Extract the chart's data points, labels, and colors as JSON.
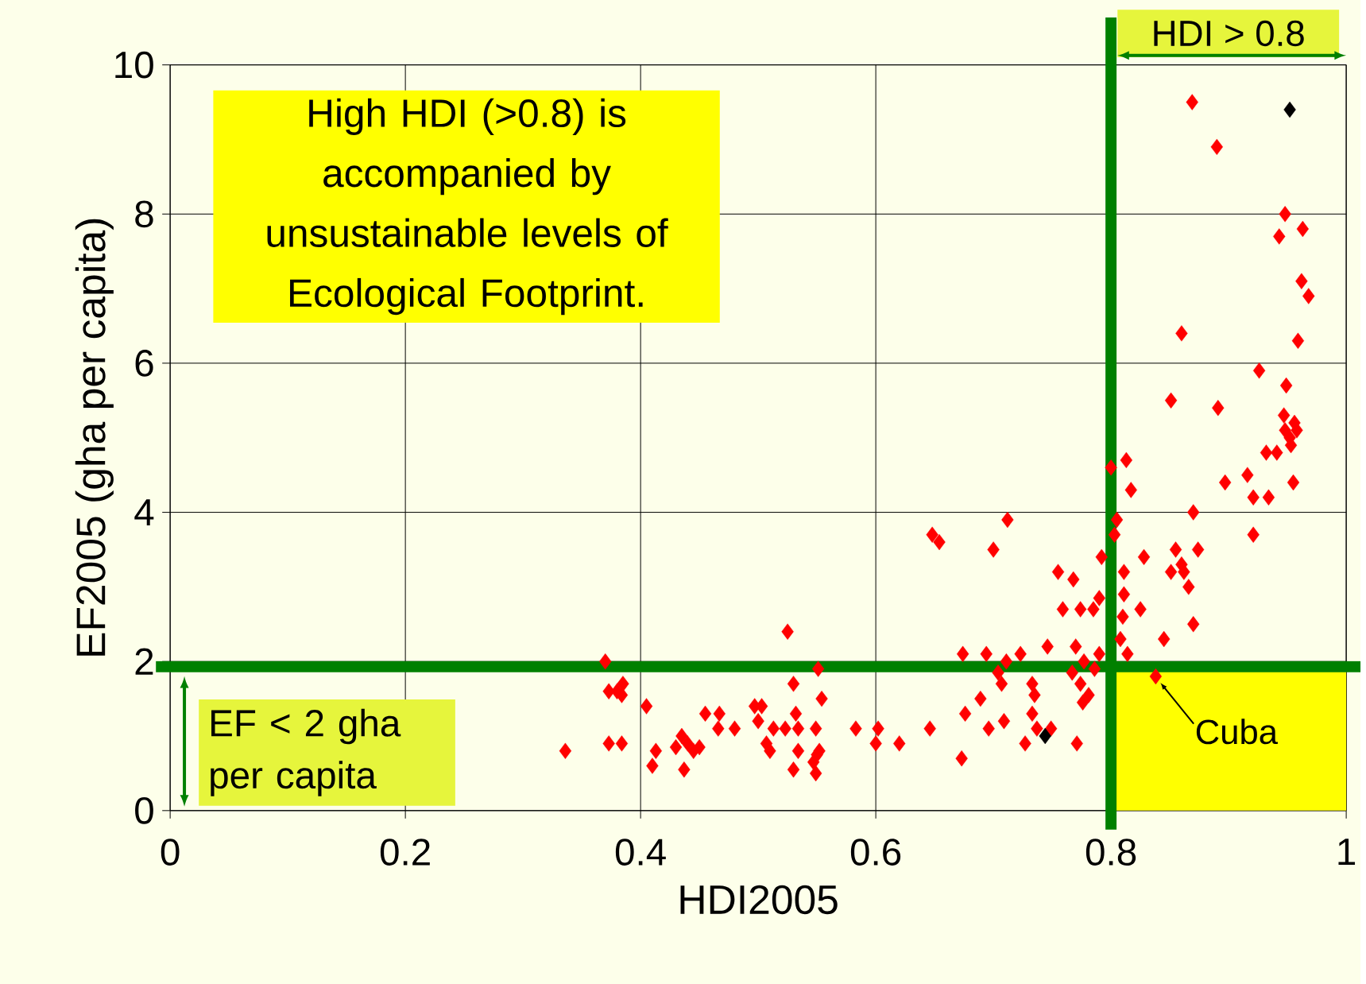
{
  "chart_data": {
    "type": "scatter",
    "xlabel": "HDI2005",
    "ylabel": "EF2005 (gha per capita)",
    "xlim": [
      0,
      1
    ],
    "ylim": [
      0,
      10
    ],
    "xticks": [
      0,
      0.2,
      0.4,
      0.6,
      0.8,
      1
    ],
    "yticks": [
      0,
      2,
      4,
      6,
      8,
      10
    ],
    "grid": true,
    "marker": "diamond",
    "series": [
      {
        "color": "#ff0000",
        "x": [
          0.336,
          0.37,
          0.373,
          0.373,
          0.38,
          0.385,
          0.384,
          0.384,
          0.405,
          0.41,
          0.413,
          0.43,
          0.435,
          0.437,
          0.44,
          0.445,
          0.45,
          0.455,
          0.466,
          0.467,
          0.48,
          0.497,
          0.503,
          0.5,
          0.507,
          0.51,
          0.513,
          0.523,
          0.525,
          0.53,
          0.53,
          0.532,
          0.534,
          0.534,
          0.547,
          0.549,
          0.549,
          0.55,
          0.552,
          0.551,
          0.554,
          0.583,
          0.6,
          0.602,
          0.62,
          0.646,
          0.648,
          0.654,
          0.674,
          0.673,
          0.676,
          0.689,
          0.694,
          0.696,
          0.7,
          0.704,
          0.707,
          0.709,
          0.712,
          0.711,
          0.723,
          0.727,
          0.733,
          0.733,
          0.735,
          0.737,
          0.746,
          0.749,
          0.755,
          0.759,
          0.768,
          0.767,
          0.77,
          0.774,
          0.771,
          0.774,
          0.776,
          0.777,
          0.781,
          0.785,
          0.786,
          0.79,
          0.792,
          0.79,
          0.805,
          0.803,
          0.8,
          0.813,
          0.817,
          0.811,
          0.811,
          0.825,
          0.81,
          0.808,
          0.814,
          0.828,
          0.838,
          0.845,
          0.851,
          0.855,
          0.851,
          0.86,
          0.86,
          0.862,
          0.866,
          0.87,
          0.869,
          0.87,
          0.874,
          0.89,
          0.891,
          0.897,
          0.916,
          0.921,
          0.921,
          0.926,
          0.932,
          0.934,
          0.943,
          0.941,
          0.948,
          0.949,
          0.947,
          0.948,
          0.952,
          0.956,
          0.953,
          0.958,
          0.955,
          0.959,
          0.962,
          0.963,
          0.968
        ],
        "values": [
          0.8,
          2.0,
          1.6,
          0.9,
          1.6,
          1.7,
          0.9,
          1.55,
          1.4,
          0.6,
          0.8,
          0.85,
          1.0,
          0.55,
          0.9,
          0.8,
          0.85,
          1.3,
          1.1,
          1.3,
          1.1,
          1.4,
          1.4,
          1.2,
          0.9,
          0.8,
          1.1,
          1.1,
          2.4,
          0.55,
          1.7,
          1.3,
          1.1,
          0.8,
          0.65,
          1.1,
          0.5,
          0.75,
          0.8,
          1.9,
          1.5,
          1.1,
          0.9,
          1.1,
          0.9,
          1.1,
          3.7,
          3.6,
          2.1,
          0.7,
          1.3,
          1.5,
          2.1,
          1.1,
          3.5,
          1.85,
          1.7,
          1.2,
          3.9,
          2.0,
          2.1,
          0.9,
          1.7,
          1.3,
          1.55,
          1.1,
          2.2,
          1.1,
          3.2,
          2.7,
          3.1,
          1.85,
          2.2,
          2.7,
          0.9,
          1.7,
          1.45,
          2.0,
          1.55,
          2.7,
          1.9,
          2.85,
          3.4,
          2.1,
          3.9,
          3.7,
          4.6,
          4.7,
          4.3,
          3.2,
          2.9,
          2.7,
          2.6,
          2.3,
          2.1,
          3.4,
          1.8,
          2.3,
          5.5,
          3.5,
          3.2,
          6.4,
          3.3,
          3.2,
          3.0,
          2.5,
          9.5,
          4.0,
          3.5,
          8.9,
          5.4,
          4.4,
          4.5,
          3.7,
          4.2,
          5.9,
          4.8,
          4.2,
          7.7,
          4.8,
          8.0,
          5.7,
          5.3,
          5.1,
          5.0,
          5.2,
          4.9,
          5.1,
          4.4,
          6.3,
          7.1,
          7.8,
          6.9
        ]
      },
      {
        "color": "#000000",
        "x": [
          0.744,
          0.952
        ],
        "values": [
          1.0,
          9.4
        ]
      }
    ],
    "ref_lines": [
      {
        "axis": "x",
        "value": 0.8,
        "label": "HDI > 0.8",
        "color": "#008000"
      },
      {
        "axis": "y",
        "value": 1.93,
        "label": "EF < 2 gha per capita",
        "color": "#008000"
      }
    ],
    "bands": [
      {
        "axis": "x",
        "from": 0.8,
        "to": 1,
        "color": "#ffff00"
      }
    ],
    "annotations": [
      "High HDI (>0.8) is accompanied by unsustainable levels of Ecological Footprint.",
      {
        "text": "Cuba",
        "x": 0.838,
        "y": 1.8
      }
    ]
  }
}
